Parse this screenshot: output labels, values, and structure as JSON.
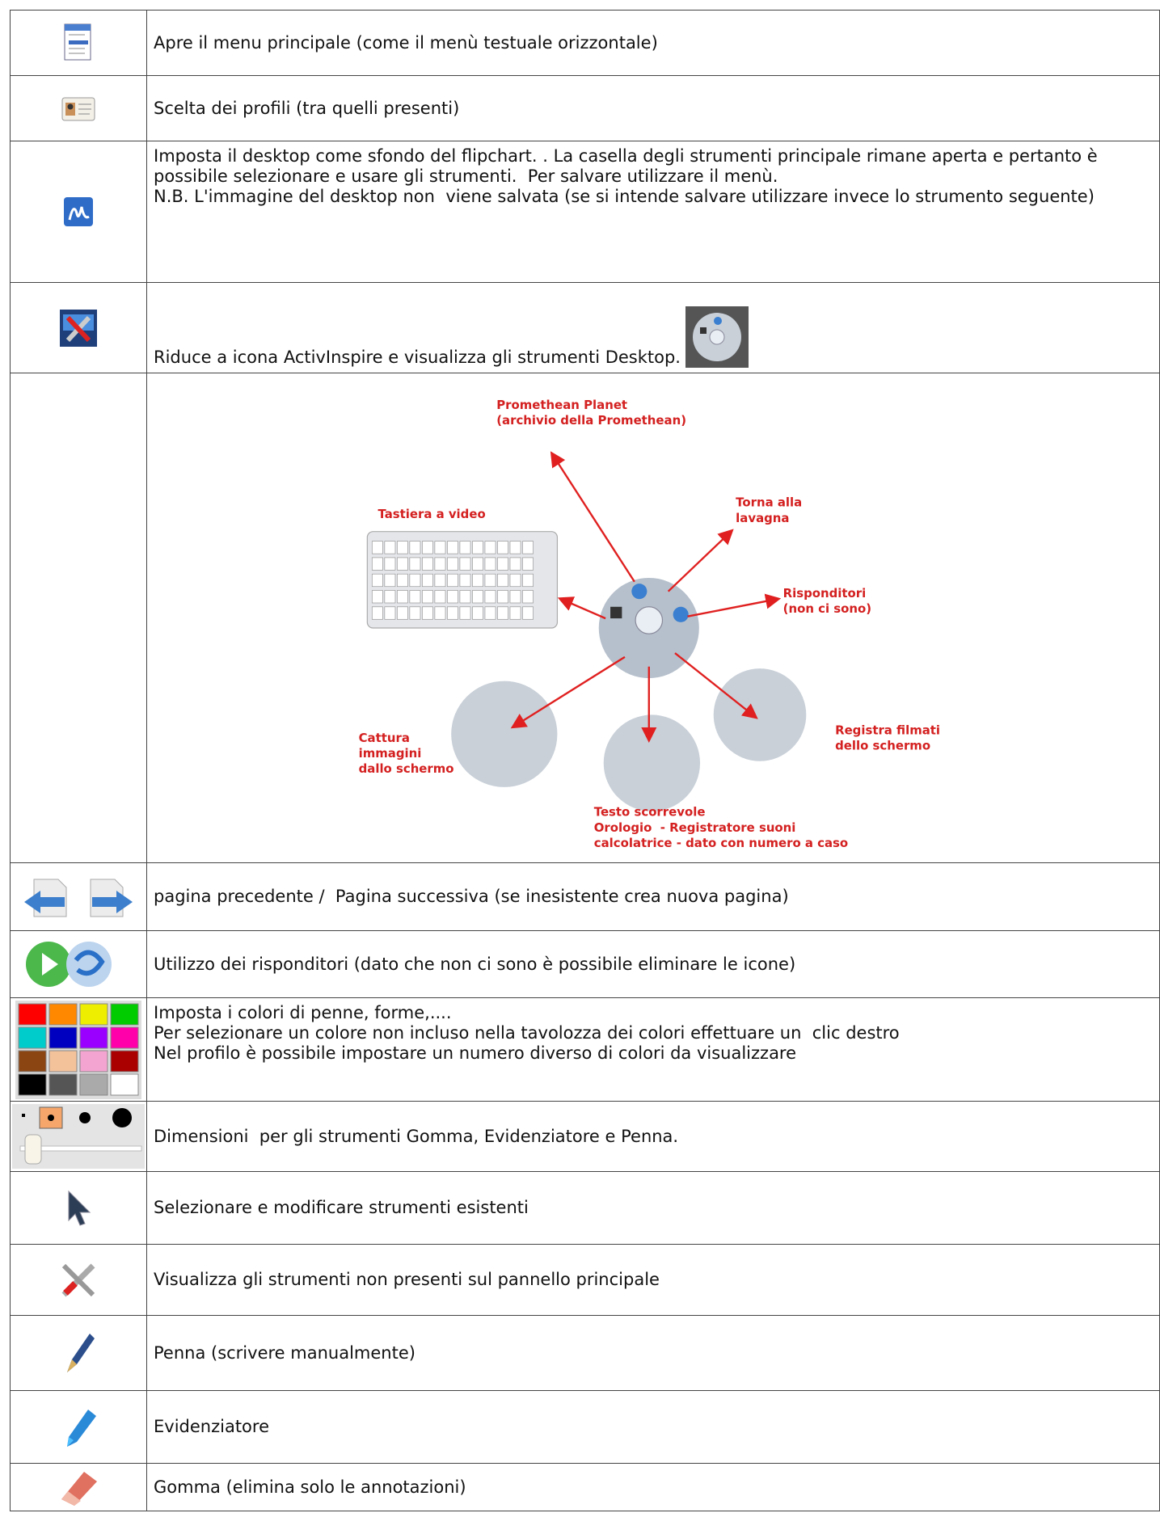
{
  "rows": [
    {
      "text": "Apre il menu principale (come il menù testuale orizzontale)"
    },
    {
      "text": "Scelta dei profili (tra quelli presenti)"
    },
    {
      "lines": [
        "Imposta il desktop come sfondo del flipchart. . La casella degli strumenti principale rimane aperta e pertanto è possibile selezionare e usare gli strumenti.  Per salvare utilizzare il menù.",
        "N.B. L'immagine del desktop non  viene salvata (se si intende salvare utilizzare invece lo strumento seguente)"
      ]
    },
    {
      "text": "Riduce a icona ActivInspire e visualizza gli strumenti Desktop."
    },
    {
      "diagram": {
        "planet": [
          "Promethean Planet",
          "(archivio della Promethean)"
        ],
        "keyboard": [
          "Tastiera a video"
        ],
        "board": [
          "Torna alla",
          "lavagna"
        ],
        "responders": [
          "Risponditori",
          "(non ci sono)"
        ],
        "capture": [
          "Cattura",
          "immagini",
          "dallo schermo"
        ],
        "record": [
          "Registra filmati",
          "dello schermo"
        ],
        "extra": [
          "Testo scorrevole",
          "Orologio  - Registratore suoni",
          "calcolatrice - dato con numero a caso"
        ]
      }
    },
    {
      "text": "pagina precedente /  Pagina successiva (se inesistente crea nuova pagina)"
    },
    {
      "text": "Utilizzo dei risponditori (dato che non ci sono è possibile eliminare le icone)"
    },
    {
      "lines": [
        "Imposta i colori di penne, forme,....",
        "Per selezionare un colore non incluso nella tavolozza dei colori effettuare un  clic destro",
        "Nel profilo è possibile impostare un numero diverso di colori da visualizzare"
      ]
    },
    {
      "text": "Dimensioni  per gli strumenti Gomma, Evidenziatore e Penna."
    },
    {
      "text": "Selezionare e modificare strumenti esistenti"
    },
    {
      "text": "Visualizza gli strumenti non presenti sul pannello principale"
    },
    {
      "text": "Penna (scrivere manualmente)"
    },
    {
      "text": "Evidenziatore"
    },
    {
      "text": "Gomma (elimina solo le annotazioni)"
    }
  ]
}
